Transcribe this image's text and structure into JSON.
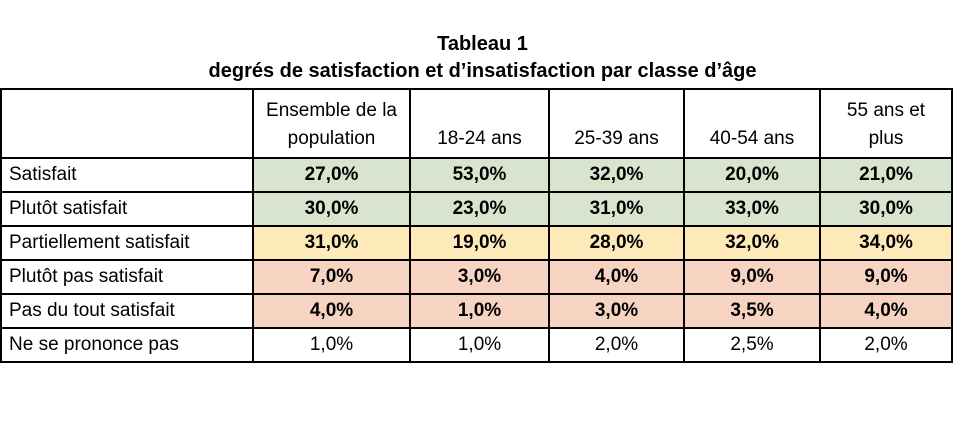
{
  "title": {
    "line1": "Tableau 1",
    "line2": "degrés de satisfaction et d’insatisfaction par classe d’âge"
  },
  "table": {
    "corner_label": "",
    "columns": [
      "Ensemble de la population",
      "18-24 ans",
      "25-39 ans",
      "40-54 ans",
      "55 ans et plus"
    ],
    "rows": [
      {
        "label": "Satisfait",
        "values": [
          "27,0%",
          "53,0%",
          "32,0%",
          "20,0%",
          "21,0%"
        ],
        "color_key": "green",
        "bold": true
      },
      {
        "label": "Plutôt satisfait",
        "values": [
          "30,0%",
          "23,0%",
          "31,0%",
          "33,0%",
          "30,0%"
        ],
        "color_key": "green",
        "bold": true
      },
      {
        "label": "Partiellement satisfait",
        "values": [
          "31,0%",
          "19,0%",
          "28,0%",
          "32,0%",
          "34,0%"
        ],
        "color_key": "yellow",
        "bold": true
      },
      {
        "label": "Plutôt pas satisfait",
        "values": [
          "7,0%",
          "3,0%",
          "4,0%",
          "9,0%",
          "9,0%"
        ],
        "color_key": "salmon",
        "bold": true
      },
      {
        "label": "Pas du tout satisfait",
        "values": [
          "4,0%",
          "1,0%",
          "3,0%",
          "3,5%",
          "4,0%"
        ],
        "color_key": "salmon",
        "bold": true
      },
      {
        "label": "Ne se prononce pas",
        "values": [
          "1,0%",
          "1,0%",
          "2,0%",
          "2,5%",
          "2,0%"
        ],
        "color_key": "none",
        "bold": false
      }
    ],
    "colors": {
      "green": "#d8e4ce",
      "yellow": "#fdeab8",
      "salmon": "#f7d4c2",
      "none": "#ffffff",
      "border": "#000000"
    }
  },
  "chart_data": {
    "type": "table",
    "title": "Tableau 1 — degrés de satisfaction et d’insatisfaction par classe d’âge",
    "columns": [
      "Ensemble de la population",
      "18-24 ans",
      "25-39 ans",
      "40-54 ans",
      "55 ans et plus"
    ],
    "row_labels": [
      "Satisfait",
      "Plutôt satisfait",
      "Partiellement satisfait",
      "Plutôt pas satisfait",
      "Pas du tout satisfait",
      "Ne se prononce pas"
    ],
    "values_percent": [
      [
        27.0,
        53.0,
        32.0,
        20.0,
        21.0
      ],
      [
        30.0,
        23.0,
        31.0,
        33.0,
        30.0
      ],
      [
        31.0,
        19.0,
        28.0,
        32.0,
        34.0
      ],
      [
        7.0,
        3.0,
        4.0,
        9.0,
        9.0
      ],
      [
        4.0,
        1.0,
        3.0,
        3.5,
        4.0
      ],
      [
        1.0,
        1.0,
        2.0,
        2.5,
        2.0
      ]
    ],
    "value_format": "0,0%",
    "row_color_groups": [
      "green",
      "green",
      "yellow",
      "salmon",
      "salmon",
      "none"
    ]
  }
}
